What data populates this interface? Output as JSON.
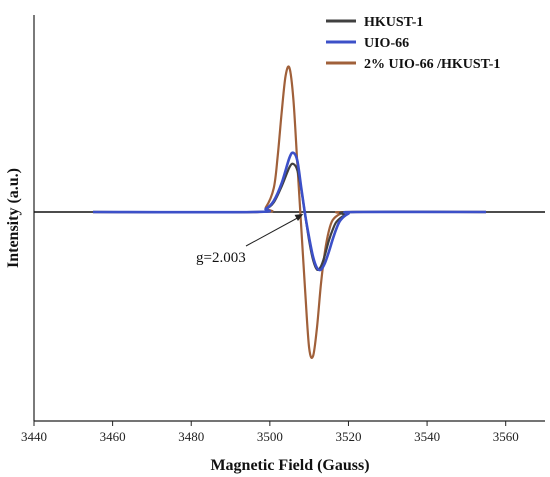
{
  "chart_data": {
    "type": "line",
    "title": "",
    "xlabel": "Magnetic Field (Gauss)",
    "ylabel": "Intensity (a.u.)",
    "xlim": [
      3440,
      3570
    ],
    "ylim": [
      -1.0,
      1.0
    ],
    "xticks": [
      3440,
      3460,
      3480,
      3500,
      3520,
      3540,
      3560
    ],
    "grid": false,
    "legend_position": "top-right",
    "annotation": {
      "text": "g=2.003",
      "x": 3508.5,
      "y": 0.0
    },
    "series": [
      {
        "name": "HKUST-1",
        "color": "#404040",
        "x": [
          3455,
          3496,
          3499,
          3501,
          3503,
          3505,
          3506,
          3507,
          3508,
          3509,
          3510,
          3511,
          3512,
          3513,
          3514,
          3515,
          3516,
          3517,
          3519,
          3521,
          3555
        ],
        "y": [
          0,
          0,
          0.02,
          0.06,
          0.16,
          0.28,
          0.3,
          0.26,
          0.14,
          -0.02,
          -0.18,
          -0.3,
          -0.36,
          -0.34,
          -0.27,
          -0.18,
          -0.11,
          -0.06,
          -0.02,
          0,
          0
        ]
      },
      {
        "name": "UIO-66",
        "color": "#3c50c8",
        "x": [
          3455,
          3496,
          3499,
          3501,
          3503,
          3505,
          3506,
          3507,
          3508,
          3509,
          3510,
          3511,
          3512,
          3513,
          3514,
          3515,
          3516,
          3517,
          3518,
          3520,
          3522,
          3555
        ],
        "y": [
          0,
          0,
          0.02,
          0.07,
          0.18,
          0.34,
          0.37,
          0.32,
          0.15,
          -0.02,
          -0.16,
          -0.28,
          -0.35,
          -0.36,
          -0.32,
          -0.25,
          -0.17,
          -0.1,
          -0.05,
          -0.01,
          0,
          0
        ]
      },
      {
        "name": "2% UIO-66 /HKUST-1",
        "color": "#a0603a",
        "x": [
          3455,
          3497,
          3499,
          3501,
          3502,
          3503,
          3504,
          3505,
          3506,
          3507,
          3508,
          3509,
          3510,
          3511,
          3512,
          3513,
          3514,
          3515,
          3516,
          3518,
          3520,
          3555
        ],
        "y": [
          0,
          0,
          0.03,
          0.15,
          0.35,
          0.62,
          0.85,
          0.9,
          0.7,
          0.3,
          -0.1,
          -0.5,
          -0.85,
          -0.9,
          -0.72,
          -0.45,
          -0.25,
          -0.12,
          -0.05,
          -0.01,
          0,
          0
        ]
      }
    ]
  }
}
